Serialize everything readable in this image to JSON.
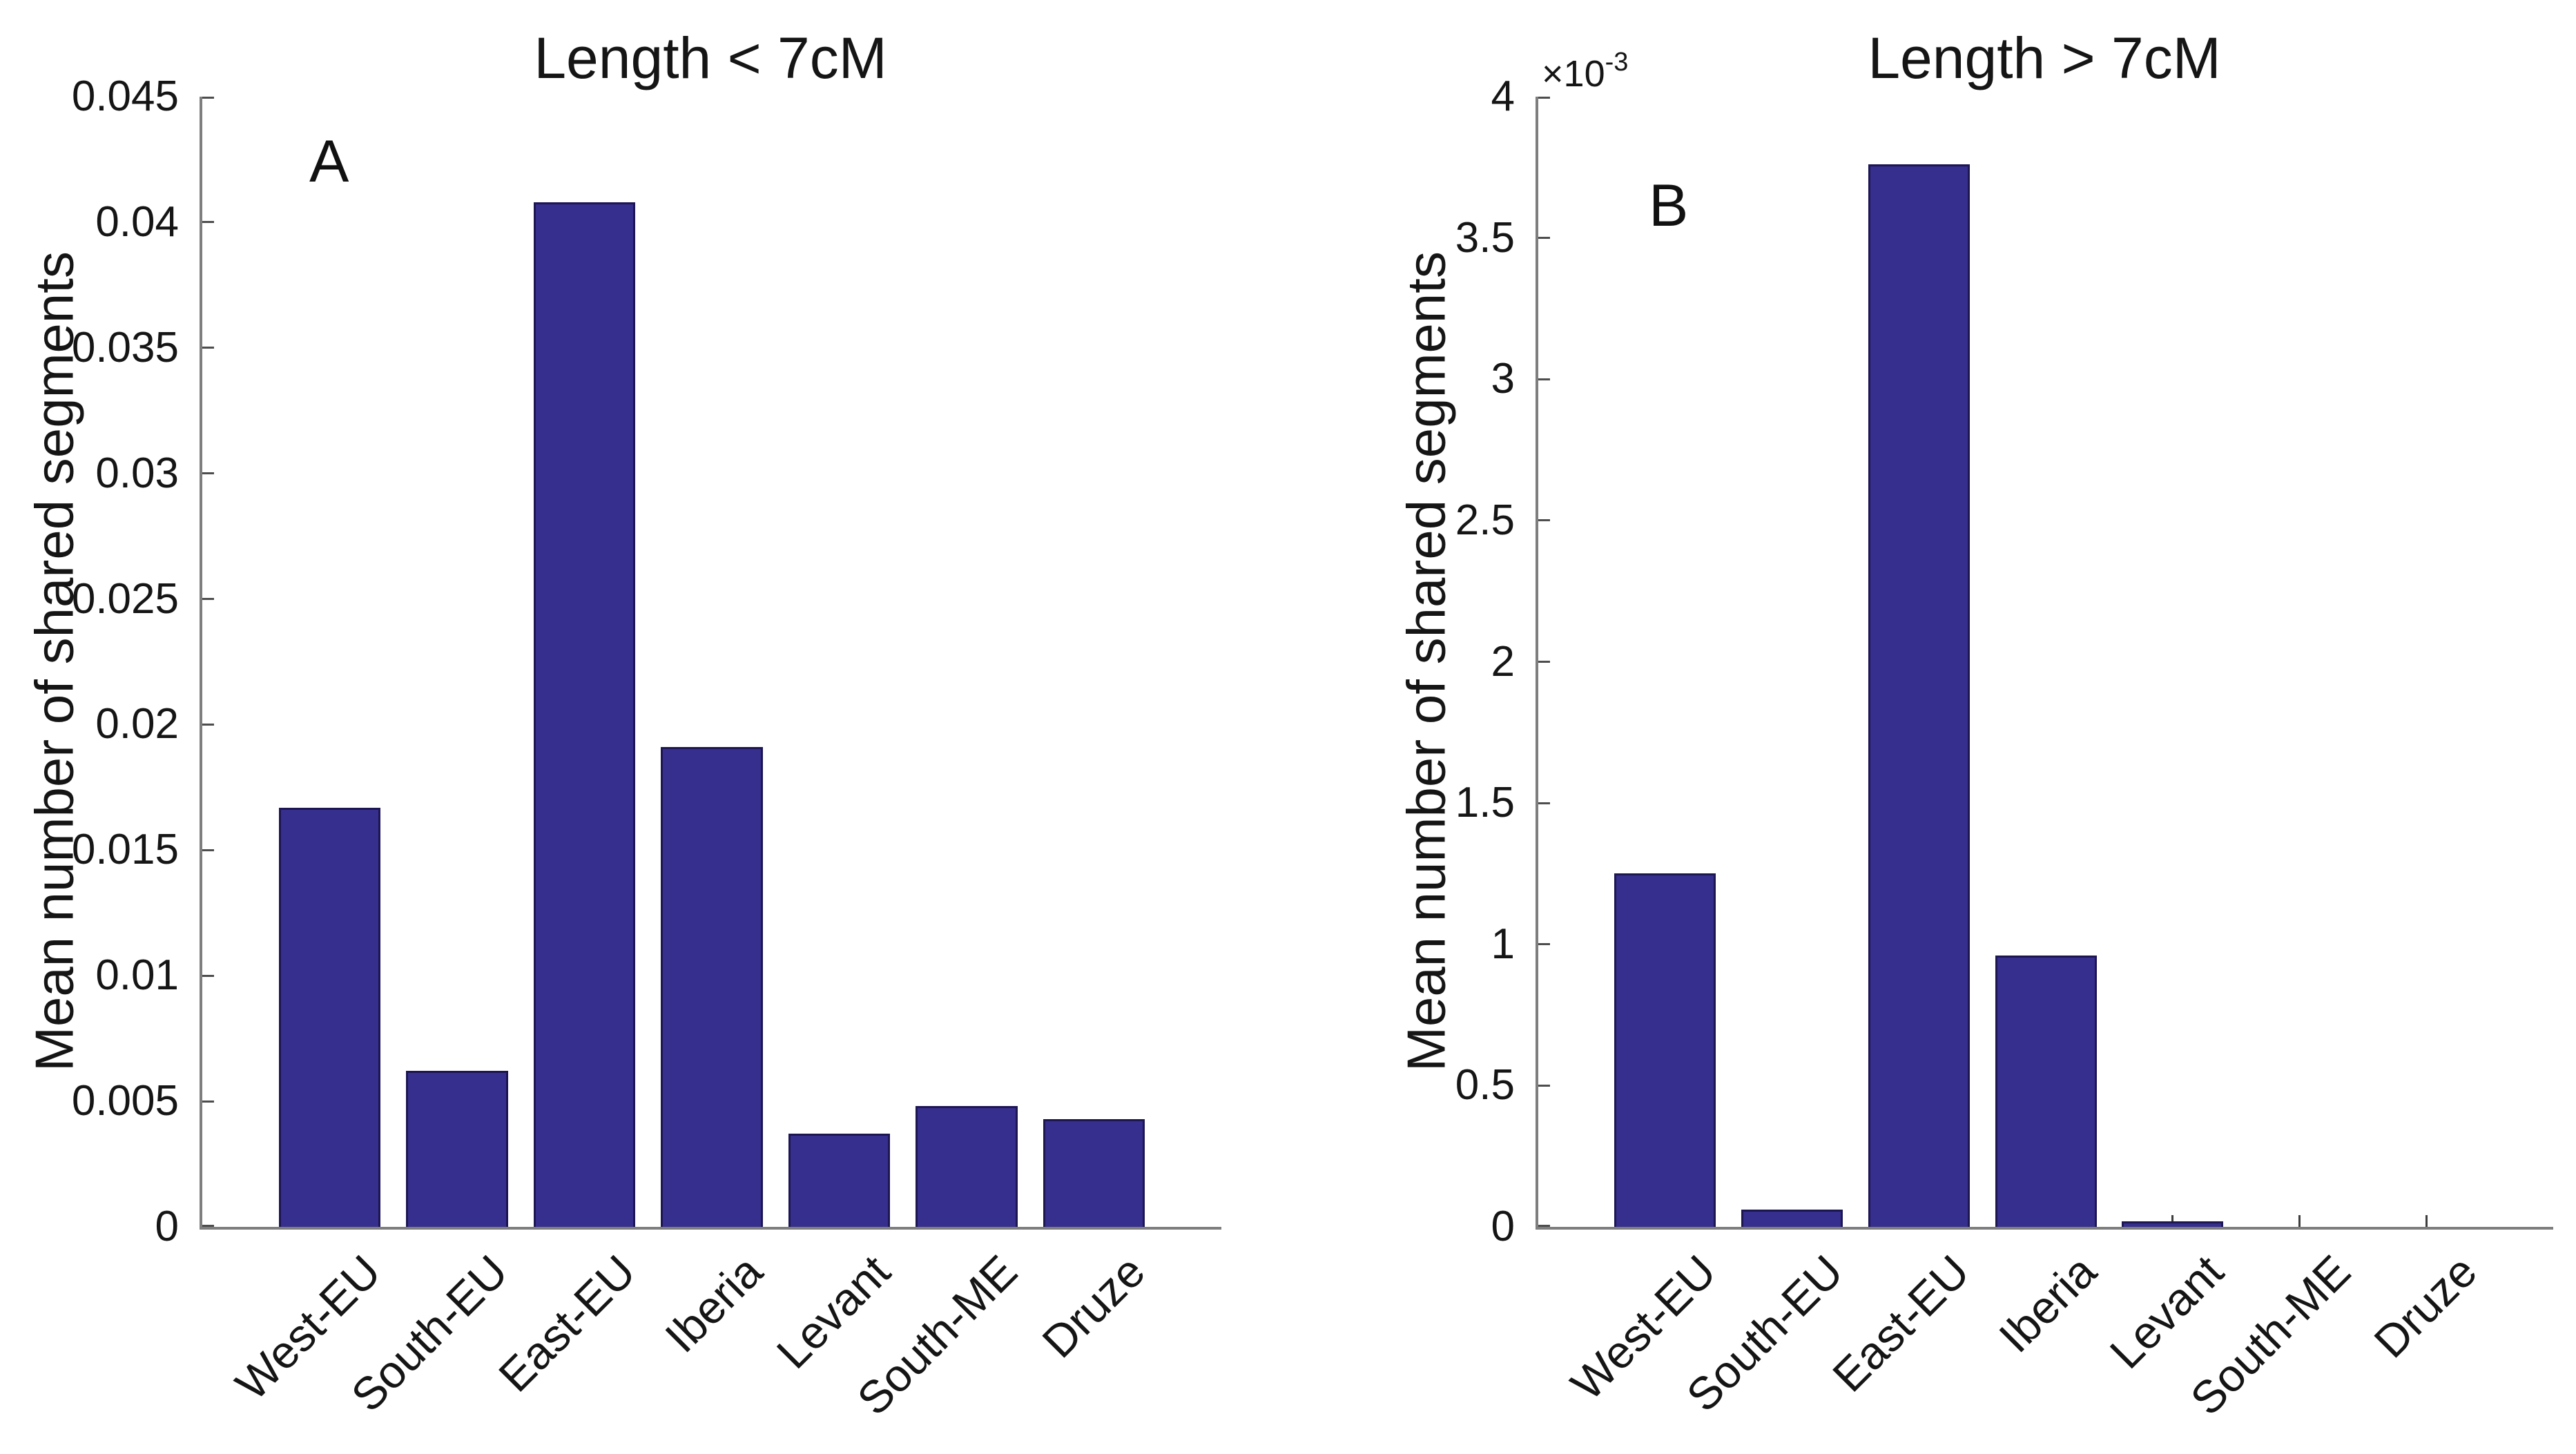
{
  "figure": {
    "background": "#ffffff",
    "bar_fill_color": "#372F8D",
    "bar_edge_color": "#1C1653",
    "axis_line_color": "#7e7e7e",
    "tick_mark_color": "#3d3d3d",
    "text_color": "#151515"
  },
  "chart_data": [
    {
      "type": "bar",
      "panel_label": "A",
      "title": "Length < 7cM",
      "ylabel": "Mean number of shared segments",
      "xlabel": "",
      "categories": [
        "West-EU",
        "South-EU",
        "East-EU",
        "Iberia",
        "Levant",
        "South-ME",
        "Druze"
      ],
      "values": [
        0.0167,
        0.0062,
        0.0408,
        0.0191,
        0.0037,
        0.0048,
        0.0043
      ],
      "ylim": [
        0,
        0.045
      ],
      "yticks": [
        0,
        0.005,
        0.01,
        0.015,
        0.02,
        0.025,
        0.03,
        0.035,
        0.04,
        0.045
      ],
      "ytick_labels": [
        "0",
        "0.005",
        "0.01",
        "0.015",
        "0.02",
        "0.025",
        "0.03",
        "0.035",
        "0.04",
        "0.045"
      ],
      "y_scale_label": null,
      "bar_width_fraction": 0.8,
      "xtick_label_rotation_deg": 45,
      "grid": false,
      "legend_position": "none"
    },
    {
      "type": "bar",
      "panel_label": "B",
      "title": "Length > 7cM",
      "ylabel": "Mean number of shared segments",
      "xlabel": "",
      "categories": [
        "West-EU",
        "South-EU",
        "East-EU",
        "Iberia",
        "Levant",
        "South-ME",
        "Druze"
      ],
      "values": [
        1.25,
        0.06,
        3.76,
        0.96,
        0.02,
        0,
        0
      ],
      "value_unit_multiplier": "1e-3",
      "ylim": [
        0,
        4
      ],
      "yticks": [
        0,
        0.5,
        1,
        1.5,
        2,
        2.5,
        3,
        3.5,
        4
      ],
      "ytick_labels": [
        "0",
        "0.5",
        "1",
        "1.5",
        "2",
        "2.5",
        "3",
        "3.5",
        "4"
      ],
      "y_scale_label": {
        "base": "×10",
        "exponent": "-3"
      },
      "bar_width_fraction": 0.8,
      "xtick_label_rotation_deg": 45,
      "grid": false,
      "legend_position": "none"
    }
  ]
}
